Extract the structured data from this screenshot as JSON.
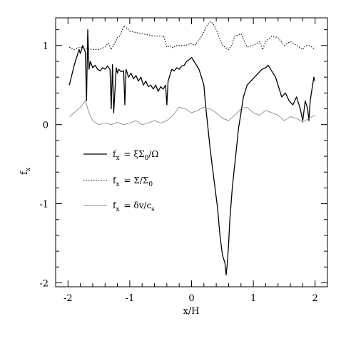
{
  "chart_data": {
    "type": "line",
    "xlabel": "x/H",
    "ylabel": "f_x",
    "xlim": [
      -2.2,
      2.2
    ],
    "ylim": [
      -2.05,
      1.35
    ],
    "xticks": [
      "-2",
      "-1",
      "0",
      "1",
      "2"
    ],
    "yticks": [
      "-2",
      "-1",
      "0",
      "1"
    ],
    "legend_placement": "left, middle",
    "series": [
      {
        "name": "f_x = ξΣ_0/Ω",
        "style": "solid",
        "color": "#000000",
        "x": [
          -1.98,
          -1.94,
          -1.9,
          -1.86,
          -1.82,
          -1.8,
          -1.76,
          -1.72,
          -1.7,
          -1.68,
          -1.66,
          -1.64,
          -1.6,
          -1.56,
          -1.52,
          -1.48,
          -1.44,
          -1.4,
          -1.36,
          -1.32,
          -1.3,
          -1.28,
          -1.26,
          -1.22,
          -1.2,
          -1.18,
          -1.14,
          -1.1,
          -1.08,
          -1.06,
          -1.02,
          -0.98,
          -0.94,
          -0.9,
          -0.86,
          -0.82,
          -0.78,
          -0.74,
          -0.7,
          -0.66,
          -0.62,
          -0.58,
          -0.54,
          -0.5,
          -0.46,
          -0.42,
          -0.4,
          -0.38,
          -0.36,
          -0.32,
          -0.28,
          -0.24,
          -0.2,
          -0.16,
          -0.12,
          -0.08,
          -0.04,
          0.0,
          0.04,
          0.08,
          0.12,
          0.16,
          0.2,
          0.22,
          0.26,
          0.3,
          0.34,
          0.38,
          0.42,
          0.46,
          0.5,
          0.54,
          0.56,
          0.58,
          0.6,
          0.62,
          0.66,
          0.7,
          0.74,
          0.76,
          0.8,
          0.84,
          0.9,
          0.96,
          1.02,
          1.08,
          1.14,
          1.2,
          1.24,
          1.28,
          1.32,
          1.36,
          1.4,
          1.46,
          1.52,
          1.58,
          1.64,
          1.7,
          1.76,
          1.8,
          1.84,
          1.88,
          1.9,
          1.92,
          1.94,
          1.98,
          2.0
        ],
        "y": [
          0.5,
          0.62,
          0.75,
          0.85,
          0.95,
          0.9,
          1.0,
          0.92,
          0.3,
          1.2,
          0.7,
          0.8,
          0.72,
          0.75,
          0.7,
          0.68,
          0.72,
          0.7,
          0.74,
          0.7,
          0.2,
          0.76,
          0.15,
          0.72,
          0.65,
          0.7,
          0.67,
          0.68,
          0.25,
          0.7,
          0.6,
          0.65,
          0.58,
          0.62,
          0.55,
          0.6,
          0.5,
          0.55,
          0.48,
          0.5,
          0.45,
          0.5,
          0.42,
          0.48,
          0.45,
          0.5,
          0.25,
          0.55,
          0.6,
          0.7,
          0.68,
          0.72,
          0.7,
          0.74,
          0.75,
          0.8,
          0.82,
          0.85,
          0.8,
          0.75,
          0.7,
          0.6,
          0.5,
          0.3,
          0.0,
          -0.3,
          -0.55,
          -0.8,
          -1.05,
          -1.4,
          -1.65,
          -1.75,
          -1.9,
          -1.75,
          -1.5,
          -1.2,
          -0.8,
          -0.5,
          -0.2,
          -0.05,
          0.15,
          0.35,
          0.5,
          0.55,
          0.6,
          0.65,
          0.7,
          0.72,
          0.75,
          0.7,
          0.65,
          0.6,
          0.5,
          0.35,
          0.4,
          0.3,
          0.25,
          0.35,
          0.2,
          0.05,
          0.3,
          0.2,
          0.05,
          0.3,
          0.4,
          0.6,
          0.55
        ]
      },
      {
        "name": "f_x = Σ/Σ_0",
        "style": "dotted",
        "color": "#000000",
        "x": [
          -1.98,
          -1.9,
          -1.8,
          -1.75,
          -1.6,
          -1.5,
          -1.4,
          -1.35,
          -1.3,
          -1.25,
          -1.2,
          -1.15,
          -1.12,
          -1.1,
          -1.05,
          -1.0,
          -0.8,
          -0.6,
          -0.45,
          -0.4,
          -0.35,
          -0.3,
          -0.25,
          -0.1,
          0.0,
          0.05,
          0.1,
          0.15,
          0.25,
          0.3,
          0.35,
          0.4,
          0.5,
          0.6,
          0.65,
          0.7,
          0.8,
          0.9,
          1.0,
          1.1,
          1.15,
          1.2,
          1.3,
          1.4,
          1.5,
          1.6,
          1.7,
          1.8,
          1.85,
          1.9,
          1.95,
          2.0
        ],
        "y": [
          0.98,
          0.95,
          0.98,
          0.97,
          0.95,
          0.95,
          0.98,
          1.03,
          0.95,
          1.02,
          1.1,
          1.13,
          1.2,
          1.25,
          1.22,
          1.18,
          1.15,
          1.12,
          1.12,
          0.98,
          1.0,
          0.97,
          1.0,
          1.0,
          1.03,
          1.0,
          1.05,
          1.1,
          1.25,
          1.3,
          1.28,
          1.2,
          1.0,
          0.95,
          1.0,
          1.12,
          1.15,
          0.98,
          1.0,
          1.05,
          0.95,
          1.05,
          1.12,
          1.1,
          1.0,
          1.05,
          1.0,
          0.95,
          1.0,
          1.0,
          0.98,
          0.95
        ]
      },
      {
        "name": "f_x = δv/c_s",
        "style": "thin",
        "color": "#8a8a8a",
        "x": [
          -1.98,
          -1.9,
          -1.8,
          -1.72,
          -1.66,
          -1.6,
          -1.5,
          -1.4,
          -1.3,
          -1.2,
          -1.1,
          -1.0,
          -0.9,
          -0.8,
          -0.7,
          -0.6,
          -0.5,
          -0.4,
          -0.3,
          -0.2,
          -0.1,
          0.0,
          0.1,
          0.2,
          0.3,
          0.4,
          0.5,
          0.6,
          0.7,
          0.8,
          0.9,
          1.0,
          1.1,
          1.2,
          1.3,
          1.4,
          1.5,
          1.6,
          1.7,
          1.8,
          1.9,
          2.0
        ],
        "y": [
          0.1,
          0.15,
          0.22,
          0.3,
          0.15,
          0.05,
          0.0,
          0.02,
          0.0,
          0.03,
          0.0,
          0.02,
          0.05,
          0.0,
          0.02,
          0.05,
          0.02,
          0.05,
          0.12,
          0.22,
          0.2,
          0.15,
          0.18,
          0.22,
          0.2,
          0.15,
          0.08,
          0.05,
          0.12,
          0.2,
          0.22,
          0.15,
          0.12,
          0.18,
          0.15,
          0.12,
          0.05,
          0.1,
          0.08,
          0.03,
          0.08,
          0.12
        ]
      }
    ]
  },
  "legend": [
    {
      "lhs": "f",
      "sub": "x",
      "rhs": "= ξΣ",
      "rsub": "0",
      "tail": "/Ω"
    },
    {
      "lhs": "f",
      "sub": "x",
      "rhs": "= Σ/Σ",
      "rsub": "0",
      "tail": ""
    },
    {
      "lhs": "f",
      "sub": "x",
      "rhs": "= δv/c",
      "rsub": "s",
      "tail": ""
    }
  ],
  "axis": {
    "xlabel": "x/H",
    "ylabel_main": "f",
    "ylabel_sub": "x"
  }
}
